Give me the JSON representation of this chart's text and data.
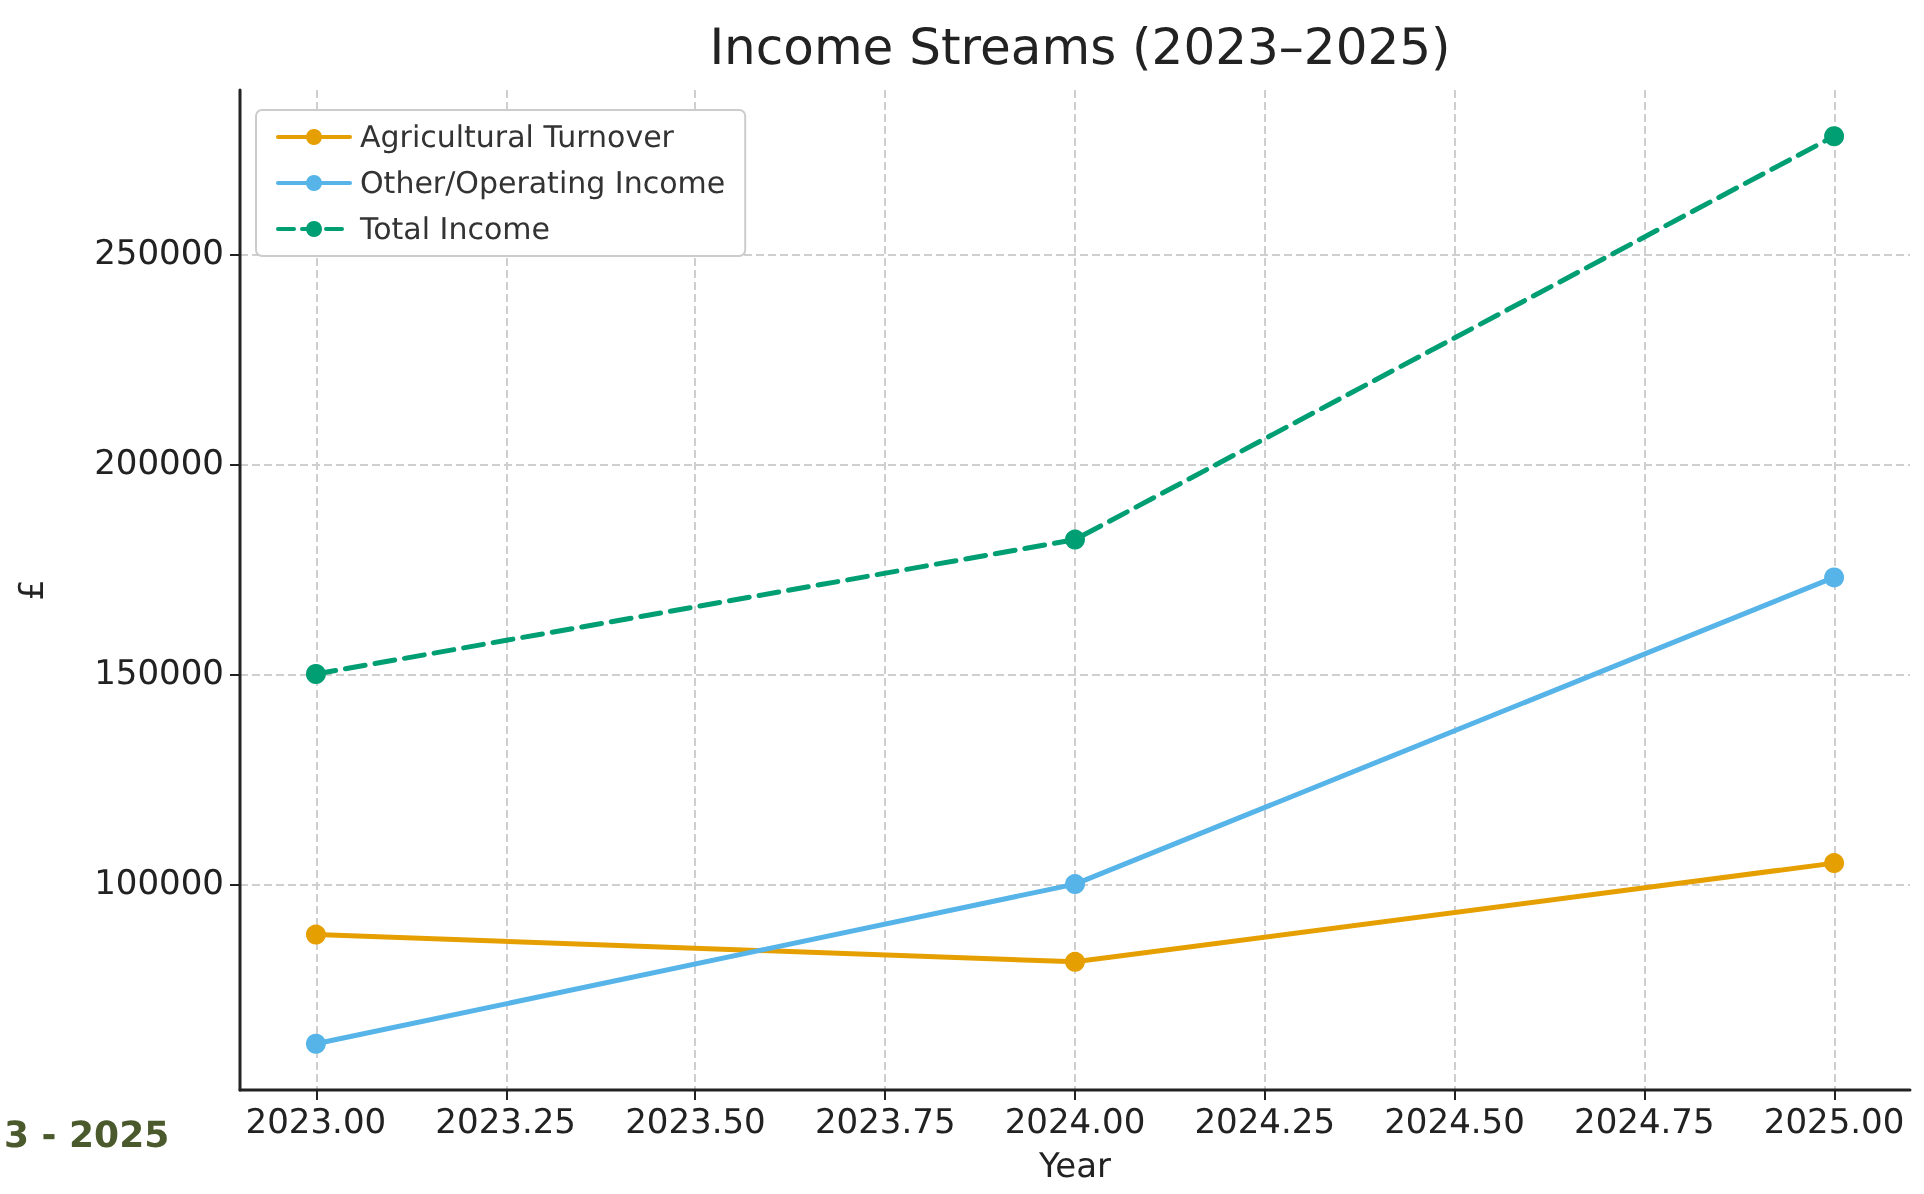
{
  "chart_data": {
    "type": "line",
    "title": "Income Streams (2023–2025)",
    "xlabel": "Year",
    "ylabel": "£",
    "x": [
      2023,
      2024,
      2025
    ],
    "series": [
      {
        "name": "Agricultural Turnover",
        "color": "#e69f00",
        "values": [
          88000,
          81500,
          105000
        ]
      },
      {
        "name": "Other/Operating Income",
        "color": "#56b4e9",
        "values": [
          62000,
          100000,
          173000
        ]
      },
      {
        "name": "Total Income",
        "color": "#009e73",
        "values": [
          150000,
          182000,
          278000
        ],
        "line_style": "dashed"
      }
    ],
    "xlim": [
      2022.9,
      2025.1
    ],
    "ylim": [
      51000,
      289000
    ],
    "xticks": [
      {
        "value": 2023,
        "label": "2023.00"
      },
      {
        "value": 2023.25,
        "label": "2023.25"
      },
      {
        "value": 2023.5,
        "label": "2023.50"
      },
      {
        "value": 2023.75,
        "label": "2023.75"
      },
      {
        "value": 2024,
        "label": "2024.00"
      },
      {
        "value": 2024.25,
        "label": "2024.25"
      },
      {
        "value": 2024.5,
        "label": "2024.50"
      },
      {
        "value": 2024.75,
        "label": "2024.75"
      },
      {
        "value": 2025,
        "label": "2025.00"
      }
    ],
    "yticks": [
      100000,
      150000,
      200000,
      250000
    ],
    "grid": true,
    "legend": "top left",
    "marker": "circle",
    "line_style": "solid",
    "annotations": [
      "3 - 2025"
    ]
  }
}
